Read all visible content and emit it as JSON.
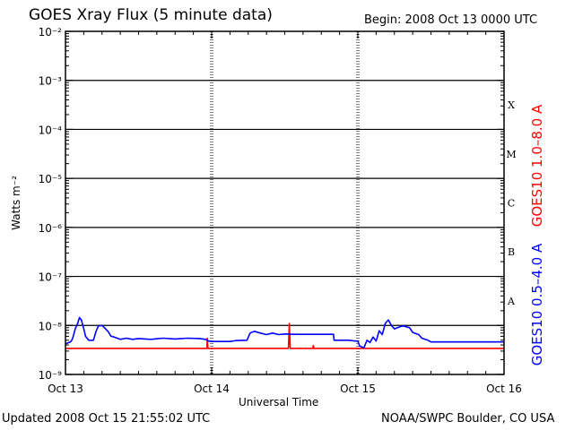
{
  "header": {
    "title": "GOES Xray Flux (5 minute data)",
    "begin": "Begin:  2008 Oct 13 0000 UTC"
  },
  "footer": {
    "updated": "Updated 2008 Oct 15 21:55:02 UTC",
    "credit": "NOAA/SWPC Boulder, CO USA"
  },
  "chart_data": {
    "type": "line",
    "title": "GOES Xray Flux (5 minute data)",
    "xlabel": "Universal Time",
    "ylabel": "Watts m⁻²",
    "ylim": [
      1e-09,
      0.01
    ],
    "xlim": [
      0,
      72
    ],
    "y_scale": "log",
    "x_unit": "hours since 2008 Oct 13 0000 UTC",
    "x_ticks": [
      {
        "x": 0,
        "label": "Oct 13"
      },
      {
        "x": 24,
        "label": "Oct 14"
      },
      {
        "x": 48,
        "label": "Oct 15"
      },
      {
        "x": 72,
        "label": "Oct 16"
      }
    ],
    "y_ticks": [
      {
        "exp": -9,
        "label": "10⁻⁹"
      },
      {
        "exp": -8,
        "label": "10⁻⁸"
      },
      {
        "exp": -7,
        "label": "10⁻⁷"
      },
      {
        "exp": -6,
        "label": "10⁻⁶"
      },
      {
        "exp": -5,
        "label": "10⁻⁵"
      },
      {
        "exp": -4,
        "label": "10⁻⁴"
      },
      {
        "exp": -3,
        "label": "10⁻³"
      },
      {
        "exp": -2,
        "label": "10⁻²"
      }
    ],
    "flare_classes": [
      {
        "label": "A",
        "exp": -7.5
      },
      {
        "label": "B",
        "exp": -6.5
      },
      {
        "label": "C",
        "exp": -5.5
      },
      {
        "label": "M",
        "exp": -4.5
      },
      {
        "label": "X",
        "exp": -3.5
      }
    ],
    "grid": {
      "horizontal_decades": [
        -8,
        -7,
        -6,
        -5,
        -4,
        -3
      ],
      "vertical_days": [
        24,
        48
      ]
    },
    "series": [
      {
        "name": "GOES10 1.0–8.0 A",
        "color": "#ff0000",
        "points": [
          [
            0,
            3.4e-09
          ],
          [
            23.2,
            3.4e-09
          ],
          [
            23.3,
            5.5e-09
          ],
          [
            23.4,
            3.4e-09
          ],
          [
            36.6,
            3.4e-09
          ],
          [
            36.75,
            1.1e-08
          ],
          [
            36.9,
            3.4e-09
          ],
          [
            40.6,
            3.4e-09
          ],
          [
            40.7,
            3.9e-09
          ],
          [
            40.8,
            3.4e-09
          ],
          [
            72,
            3.4e-09
          ]
        ]
      },
      {
        "name": "GOES10 0.5–4.0 A",
        "color": "#0000ff",
        "points": [
          [
            0,
            4.2e-09
          ],
          [
            0.8,
            4.6e-09
          ],
          [
            1,
            4.9e-09
          ],
          [
            1.2,
            5.6e-09
          ],
          [
            1.6,
            8.5e-09
          ],
          [
            2.0,
            1.1e-08
          ],
          [
            2.3,
            1.45e-08
          ],
          [
            2.6,
            1.3e-08
          ],
          [
            3.0,
            8.5e-09
          ],
          [
            3.3,
            6e-09
          ],
          [
            3.8,
            5e-09
          ],
          [
            4.6,
            5e-09
          ],
          [
            5.0,
            7.5e-09
          ],
          [
            5.4,
            9.8e-09
          ],
          [
            6.0,
            1e-08
          ],
          [
            6.4,
            9e-09
          ],
          [
            7.0,
            7.5e-09
          ],
          [
            7.5,
            6e-09
          ],
          [
            8.0,
            5.8e-09
          ],
          [
            9.0,
            5.2e-09
          ],
          [
            10.0,
            5.5e-09
          ],
          [
            11.0,
            5.2e-09
          ],
          [
            12.0,
            5.4e-09
          ],
          [
            14.0,
            5.2e-09
          ],
          [
            16.0,
            5.5e-09
          ],
          [
            18.0,
            5.3e-09
          ],
          [
            20.0,
            5.5e-09
          ],
          [
            22.0,
            5.4e-09
          ],
          [
            23.0,
            5.2e-09
          ],
          [
            23.5,
            4.8e-09
          ],
          [
            24.0,
            4.7e-09
          ],
          [
            27.0,
            4.7e-09
          ],
          [
            28.0,
            4.9e-09
          ],
          [
            29.8,
            5e-09
          ],
          [
            30.3,
            7e-09
          ],
          [
            31.0,
            7.6e-09
          ],
          [
            32.0,
            7e-09
          ],
          [
            33.0,
            6.5e-09
          ],
          [
            34.0,
            7e-09
          ],
          [
            35.0,
            6.5e-09
          ],
          [
            36.0,
            6.7e-09
          ],
          [
            37.5,
            6.6e-09
          ],
          [
            40.0,
            6.6e-09
          ],
          [
            43.0,
            6.6e-09
          ],
          [
            44.0,
            6.6e-09
          ],
          [
            44.1,
            5e-09
          ],
          [
            46.5,
            5e-09
          ],
          [
            47.6,
            4.8e-09
          ],
          [
            48.0,
            4.8e-09
          ],
          [
            48.3,
            3.8e-09
          ],
          [
            49.0,
            3.5e-09
          ],
          [
            49.5,
            5e-09
          ],
          [
            50.0,
            4.5e-09
          ],
          [
            50.5,
            5.8e-09
          ],
          [
            51.0,
            4.8e-09
          ],
          [
            51.5,
            7.8e-09
          ],
          [
            52.0,
            6.5e-09
          ],
          [
            52.5,
            1.1e-08
          ],
          [
            53.0,
            1.3e-08
          ],
          [
            53.5,
            1e-08
          ],
          [
            54.0,
            8.5e-09
          ],
          [
            55.0,
            9.5e-09
          ],
          [
            55.5,
            9.8e-09
          ],
          [
            56.5,
            9e-09
          ],
          [
            57.0,
            7.2e-09
          ],
          [
            58.0,
            6.5e-09
          ],
          [
            58.5,
            5.5e-09
          ],
          [
            59.5,
            5e-09
          ],
          [
            60.0,
            4.6e-09
          ],
          [
            72,
            4.6e-09
          ]
        ]
      }
    ]
  }
}
